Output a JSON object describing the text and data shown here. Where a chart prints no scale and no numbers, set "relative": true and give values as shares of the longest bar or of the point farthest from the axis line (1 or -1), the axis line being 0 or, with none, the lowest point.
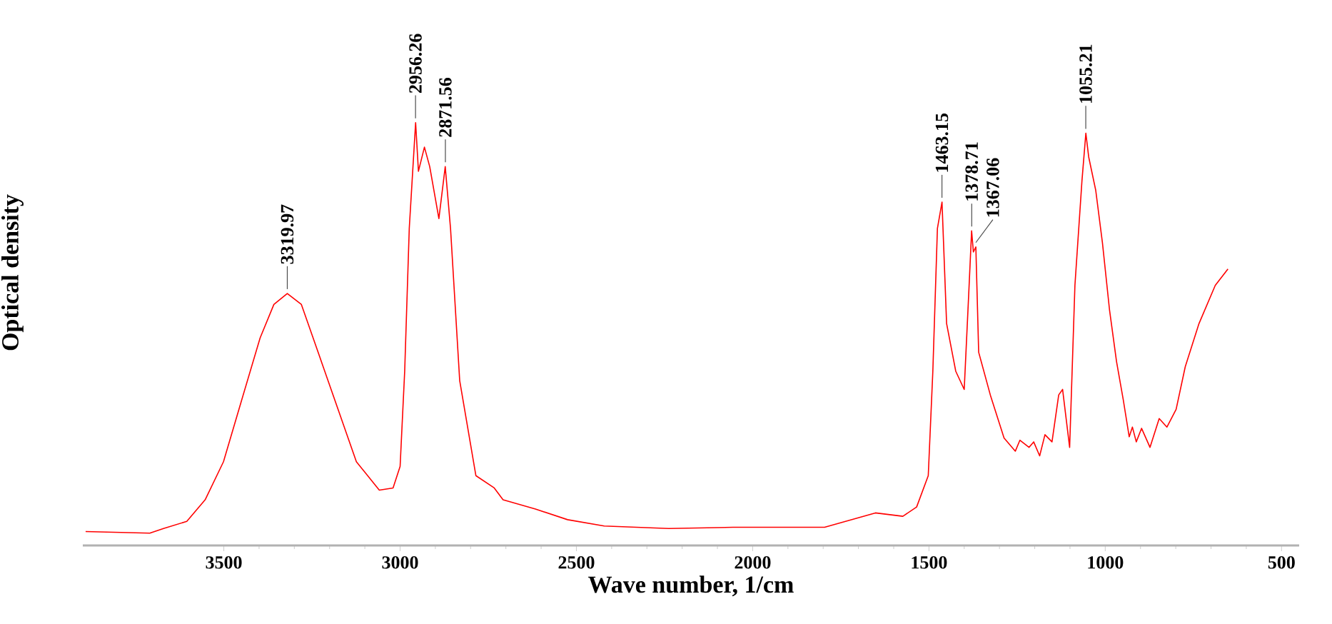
{
  "chart_data": {
    "type": "line",
    "xlabel": "Wave number, 1/cm",
    "ylabel": "Optical density",
    "relative": true,
    "color": "#ff0000",
    "xlim": [
      3900,
      450
    ],
    "xticks": [
      3500,
      3000,
      2500,
      2000,
      1500,
      1000,
      500
    ],
    "x": [
      3892,
      3710,
      3671,
      3605,
      3553,
      3501,
      3449,
      3397,
      3358,
      3320,
      3280,
      3228,
      3176,
      3124,
      3059,
      3020,
      3000,
      2987,
      2974,
      2956,
      2948,
      2931,
      2916,
      2890,
      2872,
      2857,
      2831,
      2785,
      2733,
      2708,
      2616,
      2525,
      2421,
      2238,
      2056,
      1796,
      1652,
      1574,
      1535,
      1502,
      1489,
      1476,
      1463,
      1450,
      1424,
      1400,
      1388,
      1379,
      1374,
      1367,
      1359,
      1326,
      1287,
      1255,
      1242,
      1216,
      1203,
      1186,
      1171,
      1151,
      1132,
      1121,
      1101,
      1086,
      1066,
      1055,
      1047,
      1027,
      1008,
      988,
      968,
      949,
      932,
      923,
      912,
      897,
      873,
      847,
      825,
      799,
      773,
      734,
      688,
      652
    ],
    "values": [
      0.033,
      0.029,
      0.04,
      0.057,
      0.108,
      0.198,
      0.345,
      0.491,
      0.57,
      0.596,
      0.57,
      0.446,
      0.322,
      0.198,
      0.131,
      0.136,
      0.187,
      0.412,
      0.75,
      1.0,
      0.885,
      0.942,
      0.896,
      0.773,
      0.896,
      0.75,
      0.39,
      0.165,
      0.136,
      0.108,
      0.086,
      0.061,
      0.046,
      0.04,
      0.043,
      0.043,
      0.077,
      0.069,
      0.091,
      0.165,
      0.412,
      0.75,
      0.812,
      0.525,
      0.412,
      0.369,
      0.581,
      0.744,
      0.694,
      0.706,
      0.457,
      0.356,
      0.254,
      0.223,
      0.249,
      0.232,
      0.245,
      0.212,
      0.262,
      0.245,
      0.356,
      0.369,
      0.232,
      0.615,
      0.863,
      0.975,
      0.919,
      0.84,
      0.716,
      0.558,
      0.435,
      0.345,
      0.257,
      0.28,
      0.245,
      0.277,
      0.232,
      0.3,
      0.28,
      0.322,
      0.423,
      0.525,
      0.615,
      0.654
    ],
    "annotations": [
      {
        "text": "3319.97",
        "x": 3319.97,
        "y": 0.596
      },
      {
        "text": "2956.26",
        "x": 2956.26,
        "y": 1.0
      },
      {
        "text": "2871.56",
        "x": 2871.56,
        "y": 0.896
      },
      {
        "text": "1463.15",
        "x": 1463.15,
        "y": 0.812
      },
      {
        "text": "1378.71",
        "x": 1378.71,
        "y": 0.744
      },
      {
        "text": "1367.06",
        "x": 1367.06,
        "y": 0.706
      },
      {
        "text": "1055.21",
        "x": 1055.21,
        "y": 0.975
      }
    ]
  }
}
